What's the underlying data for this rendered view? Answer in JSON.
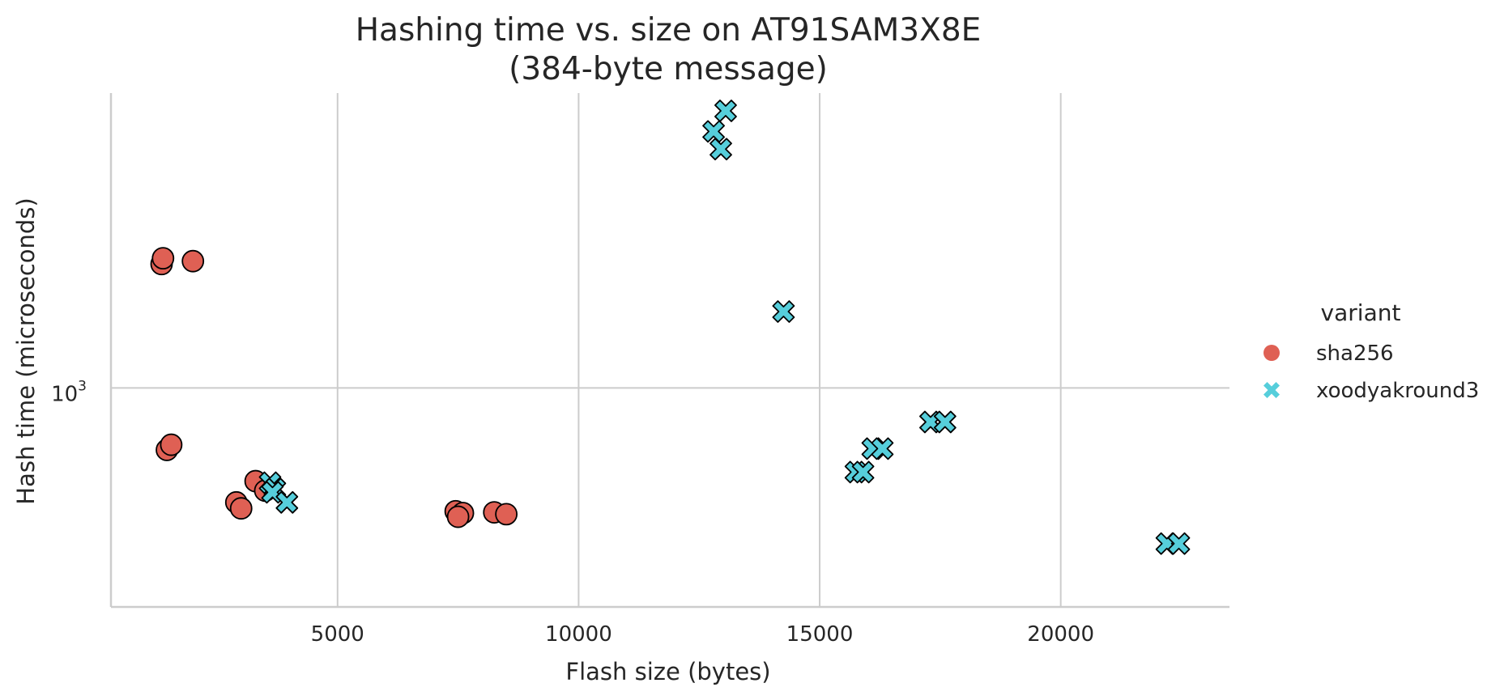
{
  "chart_data": {
    "type": "scatter",
    "title": "Hashing time vs. size on AT91SAM3X8E\n(384-byte message)",
    "xlabel": "Flash size (bytes)",
    "ylabel": "Hash time (microseconds)",
    "xlim": [
      300,
      23500
    ],
    "ylim": [
      313,
      4780
    ],
    "yscale": "log",
    "xticks": [
      5000,
      10000,
      15000,
      20000
    ],
    "yticks": [
      {
        "value": 1000,
        "base": "10",
        "exp": "3"
      }
    ],
    "grid": true,
    "legend": {
      "title": "variant",
      "position": "right"
    },
    "series": [
      {
        "name": "sha256",
        "color": "#df6054",
        "marker": "circle",
        "points": [
          [
            1350,
            1930
          ],
          [
            1380,
            1990
          ],
          [
            2000,
            1960
          ],
          [
            1460,
            720
          ],
          [
            1550,
            740
          ],
          [
            3300,
            610
          ],
          [
            3500,
            580
          ],
          [
            2900,
            545
          ],
          [
            3000,
            528
          ],
          [
            7450,
            520
          ],
          [
            7600,
            515
          ],
          [
            7500,
            505
          ],
          [
            8250,
            517
          ],
          [
            8500,
            512
          ]
        ]
      },
      {
        "name": "xoodyakround3",
        "color": "#56cedb",
        "marker": "x",
        "points": [
          [
            13050,
            4350
          ],
          [
            12800,
            3900
          ],
          [
            12950,
            3550
          ],
          [
            14250,
            1500
          ],
          [
            3600,
            605
          ],
          [
            3700,
            585
          ],
          [
            3650,
            575
          ],
          [
            3950,
            545
          ],
          [
            17300,
            835
          ],
          [
            17600,
            835
          ],
          [
            16100,
            725
          ],
          [
            16300,
            725
          ],
          [
            15750,
            640
          ],
          [
            15900,
            640
          ],
          [
            22200,
            438
          ],
          [
            22450,
            438
          ]
        ]
      }
    ]
  }
}
